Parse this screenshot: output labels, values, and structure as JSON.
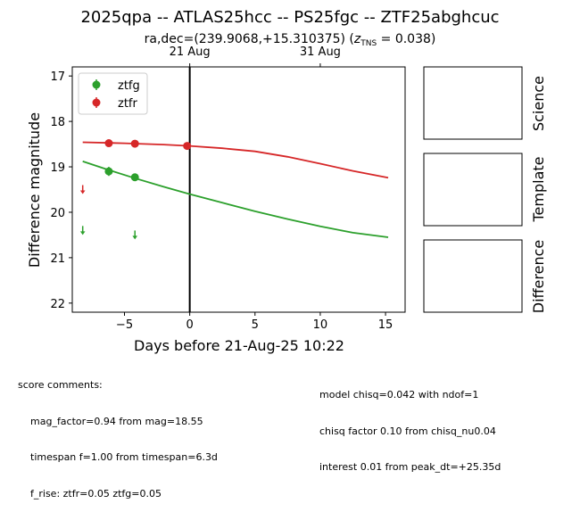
{
  "chart_data": {
    "type": "scatter",
    "title": "2025qpa -- ATLAS25hcc -- PS25fgc -- ZTF25abghcuc",
    "subtitle_prefix": "ra,dec=(239.9068,+15.310375) (",
    "subtitle_z_symbol": "z",
    "subtitle_z_sub": "TNS",
    "subtitle_z_value": " = 0.038)",
    "xlabel": "Days before 21-Aug-25 10:22",
    "ylabel": "Difference magnitude",
    "xlim": [
      -9.0,
      16.5
    ],
    "ylim": [
      22.2,
      16.8
    ],
    "y_inverted": true,
    "x_ticks": [
      -5,
      0,
      5,
      10,
      15
    ],
    "x_tick_labels": [
      "−5",
      "0",
      "5",
      "10",
      "15"
    ],
    "y_ticks": [
      17,
      18,
      19,
      20,
      21,
      22
    ],
    "y_tick_labels": [
      "17",
      "18",
      "19",
      "20",
      "21",
      "22"
    ],
    "top_ticks": [
      0,
      10
    ],
    "top_tick_labels": [
      "21 Aug",
      "31 Aug"
    ],
    "reference_line_x": 0,
    "legend_position": "upper-left",
    "grid": false,
    "series": [
      {
        "name": "ztfg",
        "color": "#2ca02c",
        "detections": [
          {
            "x": -6.2,
            "y": 19.1,
            "err": 0.1
          },
          {
            "x": -4.2,
            "y": 19.23,
            "err": 0.08
          }
        ],
        "upper_limits": [
          {
            "x": -8.2,
            "y": 20.4
          },
          {
            "x": -4.2,
            "y": 20.5
          }
        ],
        "model": {
          "x": [
            -8.2,
            -6.2,
            -4.2,
            -2.0,
            0.0,
            2.5,
            5.0,
            7.5,
            10.0,
            12.5,
            15.2
          ],
          "y": [
            18.88,
            19.07,
            19.25,
            19.44,
            19.6,
            19.79,
            19.98,
            20.15,
            20.31,
            20.45,
            20.55
          ]
        }
      },
      {
        "name": "ztfr",
        "color": "#d62728",
        "detections": [
          {
            "x": -6.2,
            "y": 18.48,
            "err": 0.03
          },
          {
            "x": -4.2,
            "y": 18.49,
            "err": 0.03
          },
          {
            "x": -0.2,
            "y": 18.54,
            "err": 0.03
          }
        ],
        "upper_limits": [
          {
            "x": -8.2,
            "y": 19.5
          }
        ],
        "model": {
          "x": [
            -8.2,
            -5.0,
            -2.0,
            0.0,
            2.5,
            5.0,
            7.5,
            10.0,
            12.5,
            15.2
          ],
          "y": [
            18.46,
            18.48,
            18.51,
            18.54,
            18.59,
            18.66,
            18.78,
            18.93,
            19.09,
            19.24
          ]
        }
      }
    ]
  },
  "panels": {
    "science_label": "Science",
    "template_label": "Template",
    "difference_label": "Difference"
  },
  "comments": {
    "header": "score comments:",
    "score_lines": [
      "mag_factor=0.94 from mag=18.55",
      "timespan f=1.00 from timespan=6.3d",
      "f_rise: ztfr=0.05 ztfg=0.05"
    ],
    "model_lines": [
      "model chisq=0.042 with ndof=1",
      "chisq factor 0.10 from chisq_nu0.04",
      "interest 0.01 from peak_dt=+25.35d"
    ]
  }
}
